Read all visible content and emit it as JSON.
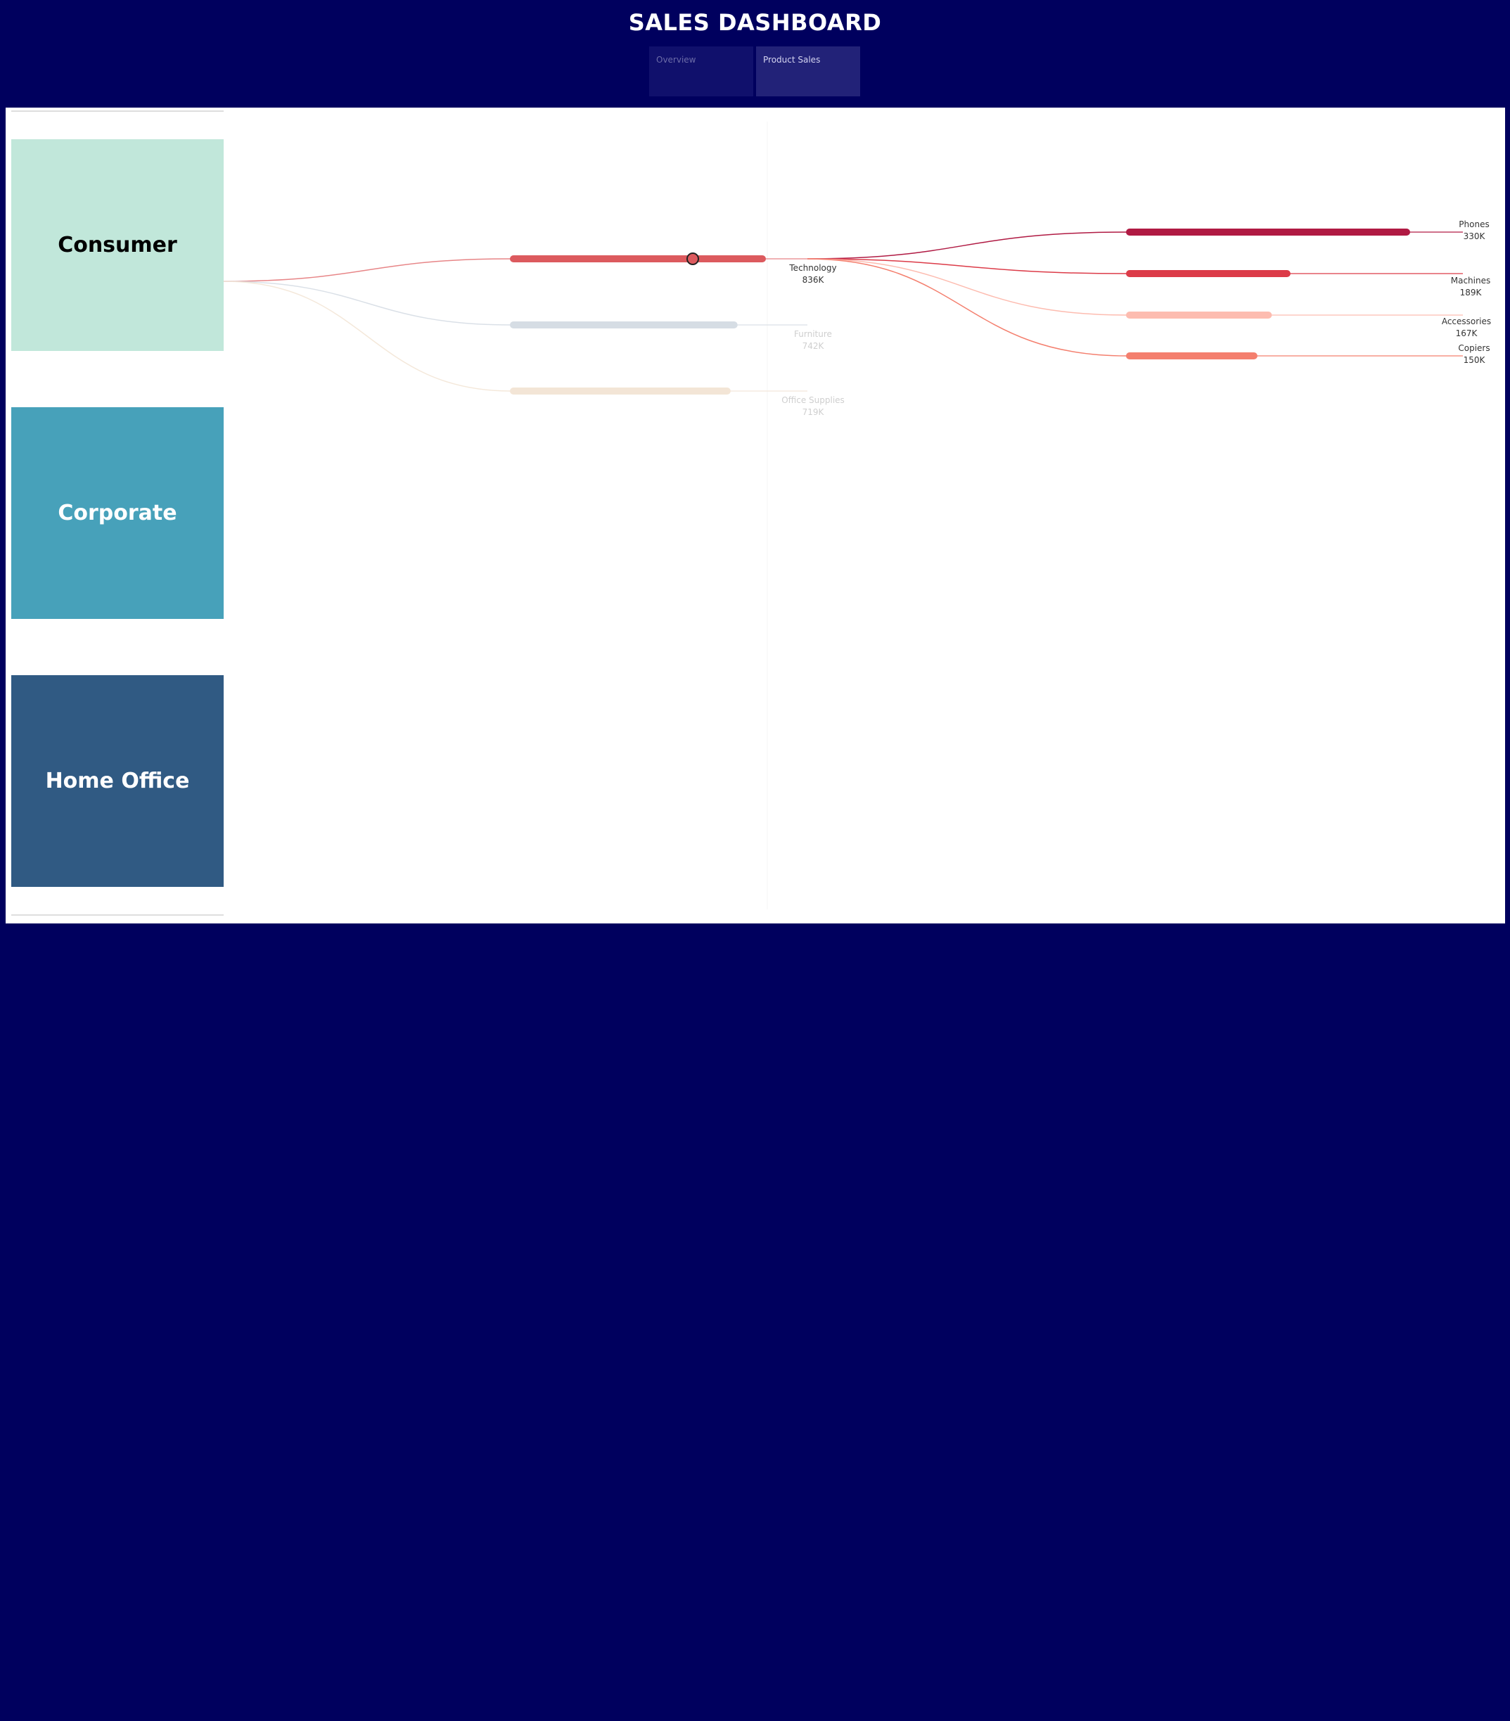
{
  "header": {
    "title": "SALES DASHBOARD"
  },
  "tabs": [
    {
      "label": "Overview",
      "active": false
    },
    {
      "label": "Product Sales",
      "active": true
    }
  ],
  "segments": [
    {
      "label": "Consumer",
      "color": "#c1e7da",
      "text_color": "#000000",
      "selected": true
    },
    {
      "label": "Corporate",
      "color": "#47a1ba",
      "text_color": "#ffffff",
      "selected": false
    },
    {
      "label": "Home Office",
      "color": "#305a83",
      "text_color": "#ffffff",
      "selected": false
    }
  ],
  "chart_data": {
    "type": "sankey",
    "source": "Consumer",
    "categories": [
      {
        "label": "Technology",
        "value_label": "836K",
        "value": 836,
        "color": "#dc5a5e",
        "highlighted": true
      },
      {
        "label": "Furniture",
        "value_label": "742K",
        "value": 742,
        "color": "#d6dde4",
        "highlighted": false
      },
      {
        "label": "Office Supplies",
        "value_label": "719K",
        "value": 719,
        "color": "#f3e5d6",
        "highlighted": false
      }
    ],
    "subcategories": [
      {
        "label": "Phones",
        "value_label": "330K",
        "value": 330,
        "color": "#b01a43"
      },
      {
        "label": "Machines",
        "value_label": "189K",
        "value": 189,
        "color": "#dc3b48"
      },
      {
        "label": "Accessories",
        "value_label": "167K",
        "value": 167,
        "color": "#fdbcb0"
      },
      {
        "label": "Copiers",
        "value_label": "150K",
        "value": 150,
        "color": "#f47f6e"
      }
    ]
  }
}
